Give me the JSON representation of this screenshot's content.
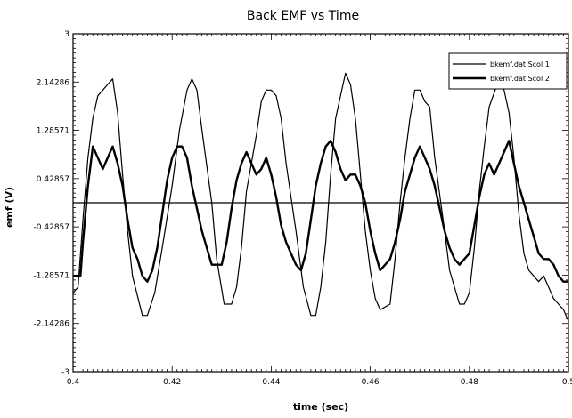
{
  "chart_data": {
    "type": "line",
    "title": "Back EMF vs Time",
    "xlabel": "time (sec)",
    "ylabel": "emf (V)",
    "xlim": [
      0.4,
      0.5
    ],
    "ylim": [
      -3,
      3
    ],
    "xticks": [
      0.4,
      0.42,
      0.44,
      0.46,
      0.48,
      0.5
    ],
    "xtick_labels": [
      "0.4",
      "0.42",
      "0.44",
      "0.46",
      "0.48",
      "0.5"
    ],
    "yticks": [
      -3,
      -2.142857,
      -1.285714,
      -0.428571,
      0.428571,
      1.285714,
      2.142857,
      3
    ],
    "ytick_labels": [
      "-3",
      "-2.14286",
      "-1.28571",
      "-0.42857",
      "0.42857",
      "1.28571",
      "2.14286",
      "3"
    ],
    "legend_position": "top-right",
    "colors": {
      "series": "#000000",
      "zero_line": "#000000"
    },
    "series": [
      {
        "name": "bkemf.dat Scol 1",
        "stroke": 1.2,
        "x": [
          0.4,
          0.401,
          0.402,
          0.403,
          0.404,
          0.405,
          0.406,
          0.407,
          0.408,
          0.409,
          0.41,
          0.411,
          0.412,
          0.414,
          0.415,
          0.4165,
          0.418,
          0.42,
          0.4215,
          0.423,
          0.424,
          0.425,
          0.426,
          0.428,
          0.429,
          0.4305,
          0.432,
          0.433,
          0.434,
          0.435,
          0.437,
          0.438,
          0.439,
          0.44,
          0.441,
          0.442,
          0.443,
          0.445,
          0.4465,
          0.448,
          0.449,
          0.45,
          0.451,
          0.452,
          0.453,
          0.455,
          0.456,
          0.457,
          0.458,
          0.459,
          0.46,
          0.461,
          0.462,
          0.464,
          0.465,
          0.466,
          0.467,
          0.468,
          0.469,
          0.47,
          0.471,
          0.472,
          0.473,
          0.475,
          0.476,
          0.477,
          0.478,
          0.479,
          0.48,
          0.481,
          0.482,
          0.483,
          0.484,
          0.486,
          0.487,
          0.488,
          0.489,
          0.49,
          0.491,
          0.492,
          0.494,
          0.495,
          0.496,
          0.497,
          0.498,
          0.499,
          0.5
        ],
        "y": [
          -1.6,
          -1.5,
          -0.3,
          0.8,
          1.5,
          1.9,
          2.0,
          2.1,
          2.2,
          1.6,
          0.5,
          -0.5,
          -1.3,
          -2.0,
          -2.0,
          -1.6,
          -0.8,
          0.3,
          1.3,
          2.0,
          2.2,
          2.0,
          1.3,
          0.0,
          -1.0,
          -1.8,
          -1.8,
          -1.5,
          -0.8,
          0.2,
          1.2,
          1.8,
          2.0,
          2.0,
          1.9,
          1.5,
          0.7,
          -0.5,
          -1.5,
          -2.0,
          -2.0,
          -1.5,
          -0.7,
          0.5,
          1.5,
          2.3,
          2.1,
          1.5,
          0.5,
          -0.5,
          -1.2,
          -1.7,
          -1.9,
          -1.8,
          -1.0,
          0.0,
          0.8,
          1.5,
          2.0,
          2.0,
          1.8,
          1.7,
          0.8,
          -0.5,
          -1.2,
          -1.5,
          -1.8,
          -1.8,
          -1.6,
          -0.8,
          0.2,
          1.0,
          1.7,
          2.2,
          2.0,
          1.6,
          0.8,
          -0.2,
          -0.9,
          -1.2,
          -1.4,
          -1.3,
          -1.5,
          -1.7,
          -1.8,
          -1.9,
          -2.1
        ]
      },
      {
        "name": "bkemf.dat Scol 2",
        "stroke": 2.4,
        "x": [
          0.4,
          0.401,
          0.4015,
          0.402,
          0.403,
          0.404,
          0.405,
          0.406,
          0.407,
          0.408,
          0.409,
          0.41,
          0.411,
          0.412,
          0.413,
          0.414,
          0.415,
          0.416,
          0.417,
          0.418,
          0.419,
          0.42,
          0.421,
          0.422,
          0.423,
          0.424,
          0.425,
          0.426,
          0.427,
          0.428,
          0.429,
          0.43,
          0.431,
          0.432,
          0.433,
          0.434,
          0.435,
          0.436,
          0.437,
          0.438,
          0.439,
          0.44,
          0.441,
          0.442,
          0.443,
          0.444,
          0.445,
          0.446,
          0.447,
          0.448,
          0.449,
          0.45,
          0.451,
          0.452,
          0.453,
          0.454,
          0.455,
          0.456,
          0.457,
          0.458,
          0.459,
          0.46,
          0.461,
          0.462,
          0.463,
          0.464,
          0.465,
          0.466,
          0.467,
          0.468,
          0.469,
          0.47,
          0.471,
          0.472,
          0.473,
          0.474,
          0.475,
          0.476,
          0.477,
          0.478,
          0.479,
          0.48,
          0.481,
          0.482,
          0.483,
          0.484,
          0.485,
          0.486,
          0.487,
          0.488,
          0.489,
          0.49,
          0.491,
          0.492,
          0.493,
          0.494,
          0.495,
          0.496,
          0.497,
          0.498,
          0.499,
          0.5
        ],
        "y": [
          -1.3,
          -1.3,
          -1.3,
          -0.7,
          0.3,
          1.0,
          0.8,
          0.6,
          0.8,
          1.0,
          0.7,
          0.3,
          -0.3,
          -0.8,
          -1.0,
          -1.3,
          -1.4,
          -1.2,
          -0.8,
          -0.2,
          0.4,
          0.8,
          1.0,
          1.0,
          0.8,
          0.3,
          -0.1,
          -0.5,
          -0.8,
          -1.1,
          -1.1,
          -1.1,
          -0.7,
          -0.1,
          0.4,
          0.7,
          0.9,
          0.7,
          0.5,
          0.6,
          0.8,
          0.5,
          0.1,
          -0.4,
          -0.7,
          -0.9,
          -1.1,
          -1.2,
          -0.9,
          -0.3,
          0.3,
          0.7,
          1.0,
          1.1,
          0.9,
          0.6,
          0.4,
          0.5,
          0.5,
          0.3,
          0.0,
          -0.5,
          -0.9,
          -1.2,
          -1.1,
          -1.0,
          -0.7,
          -0.3,
          0.2,
          0.5,
          0.8,
          1.0,
          0.8,
          0.6,
          0.3,
          -0.1,
          -0.5,
          -0.8,
          -1.0,
          -1.1,
          -1.0,
          -0.9,
          -0.4,
          0.1,
          0.5,
          0.7,
          0.5,
          0.7,
          0.9,
          1.1,
          0.7,
          0.3,
          0.0,
          -0.3,
          -0.6,
          -0.9,
          -1.0,
          -1.0,
          -1.1,
          -1.3,
          -1.4,
          -1.4
        ]
      }
    ],
    "reference_line": {
      "y": 0
    }
  }
}
